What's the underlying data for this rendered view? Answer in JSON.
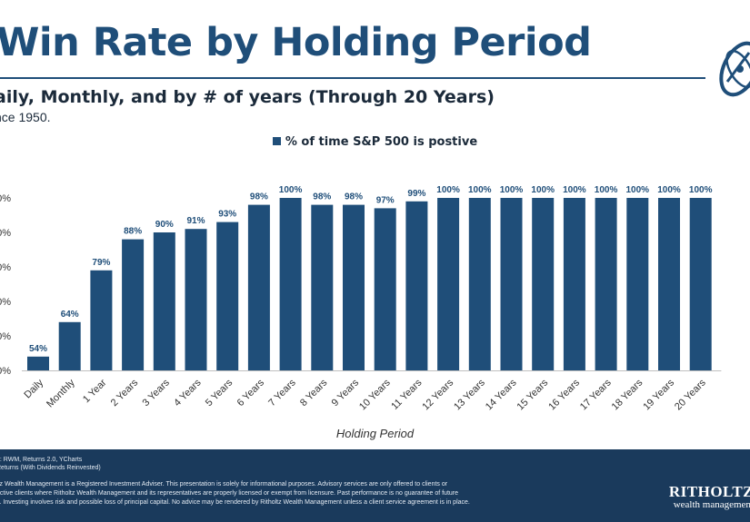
{
  "header": {
    "title": "Win Rate by Holding Period",
    "subtitle": "aily, Monthly, and by # of years (Through 20 Years)",
    "since": "nce 1950."
  },
  "chart_data": {
    "type": "bar",
    "legend": "% of time S&P 500 is postive",
    "legend_position": "top-center",
    "xlabel": "Holding Period",
    "ylim": [
      50,
      100
    ],
    "y_ticks": [
      "0%",
      "0%",
      "0%",
      "0%",
      "0%",
      "0%"
    ],
    "categories": [
      "Daily",
      "Monthly",
      "1 Year",
      "2 Years",
      "3 Years",
      "4 Years",
      "5 Years",
      "6 Years",
      "7 Years",
      "8 Years",
      "9 Years",
      "10 Years",
      "11 Years",
      "12 Years",
      "13 Years",
      "14 Years",
      "15 Years",
      "16 Years",
      "17 Years",
      "18 Years",
      "19 Years",
      "20 Years"
    ],
    "values": [
      54,
      64,
      79,
      88,
      90,
      91,
      93,
      98,
      100,
      98,
      98,
      97,
      99,
      100,
      100,
      100,
      100,
      100,
      100,
      100,
      100,
      100
    ],
    "labels": [
      "54%",
      "64%",
      "79%",
      "88%",
      "90%",
      "91%",
      "93%",
      "98%",
      "100%",
      "98%",
      "98%",
      "97%",
      "99%",
      "100%",
      "100%",
      "100%",
      "100%",
      "100%",
      "100%",
      "100%",
      "100%",
      "100%"
    ],
    "grid": false,
    "bar_color": "#1f4e79"
  },
  "footer": {
    "notes": [
      "e: RWM, Returns 2.0, YCharts",
      "Returns (With Dividends Reinvested)",
      "ltz Wealth Management is a Registered Investment Adviser. This presentation is solely for informational purposes. Advisory services are only offered to clients or",
      "ective clients where Ritholtz Wealth Management and its representatives are properly licensed or exempt from licensure. Past performance is no guarantee of future",
      "s. Investing involves risk and possible loss of principal capital. No advice may be rendered by Ritholtz Wealth Management unless a client service agreement is in place."
    ],
    "brand_name": "RITHOLTZ",
    "brand_sub": "wealth management"
  },
  "colors": {
    "title": "#1f4e79",
    "bar": "#1f4e79",
    "footer_bg": "#1a3a5c"
  }
}
